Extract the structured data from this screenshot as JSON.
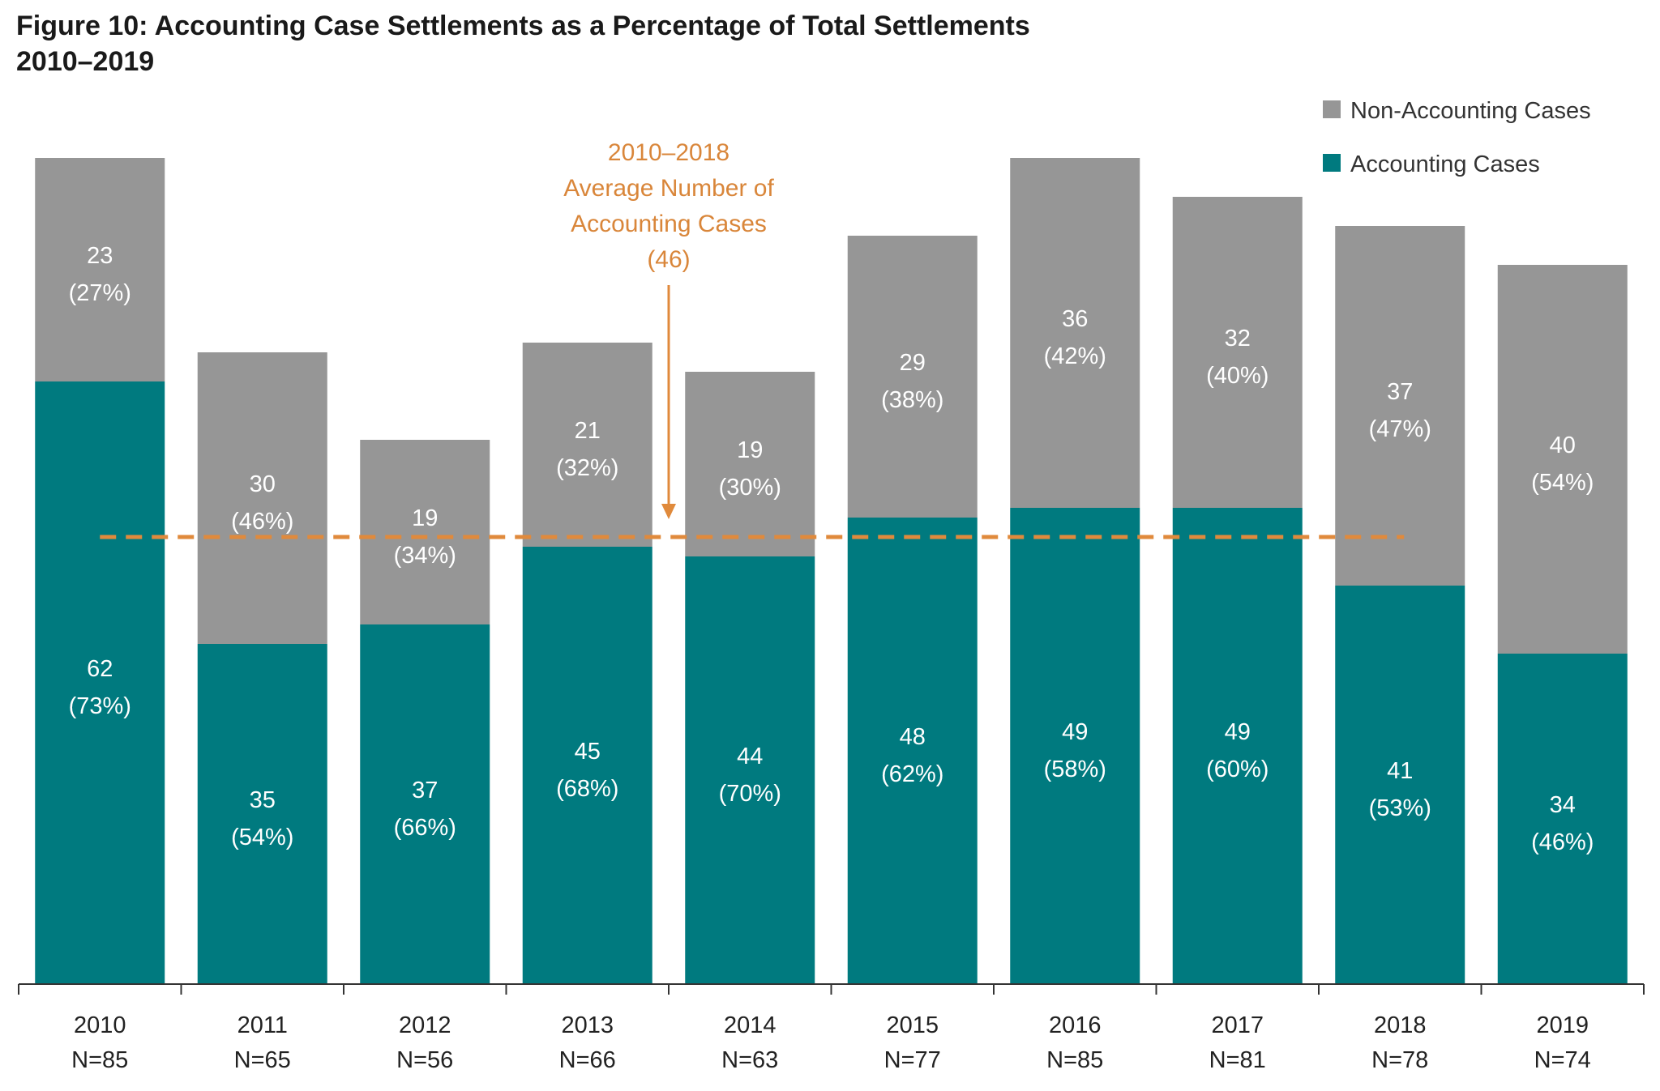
{
  "chart_data": {
    "type": "bar",
    "stacked": true,
    "title": "Figure 10: Accounting Case Settlements as a Percentage of Total Settlements",
    "subtitle": "2010–2019",
    "categories": [
      "2010",
      "2011",
      "2012",
      "2013",
      "2014",
      "2015",
      "2016",
      "2017",
      "2018",
      "2019"
    ],
    "category_n": [
      "N=85",
      "N=65",
      "N=56",
      "N=66",
      "N=63",
      "N=77",
      "N=85",
      "N=81",
      "N=78",
      "N=74"
    ],
    "series": [
      {
        "name": "Accounting Cases",
        "color": "#007a7f",
        "values": [
          62,
          35,
          37,
          45,
          44,
          48,
          49,
          49,
          41,
          34
        ],
        "percent_labels": [
          "(73%)",
          "(54%)",
          "(66%)",
          "(68%)",
          "(70%)",
          "(62%)",
          "(58%)",
          "(60%)",
          "(53%)",
          "(46%)"
        ]
      },
      {
        "name": "Non-Accounting Cases",
        "color": "#969696",
        "values": [
          23,
          30,
          19,
          21,
          19,
          29,
          36,
          32,
          37,
          40
        ],
        "percent_labels": [
          "(27%)",
          "(46%)",
          "(34%)",
          "(32%)",
          "(30%)",
          "(38%)",
          "(42%)",
          "(40%)",
          "(47%)",
          "(54%)"
        ]
      }
    ],
    "ylim": [
      0,
      85
    ],
    "grid": false,
    "legend_position": "top-right",
    "reference_line": {
      "value": 46,
      "color": "#e08a3c",
      "annotation": [
        "2010–2018",
        "Average Number of",
        "Accounting Cases",
        "(46)"
      ]
    }
  }
}
